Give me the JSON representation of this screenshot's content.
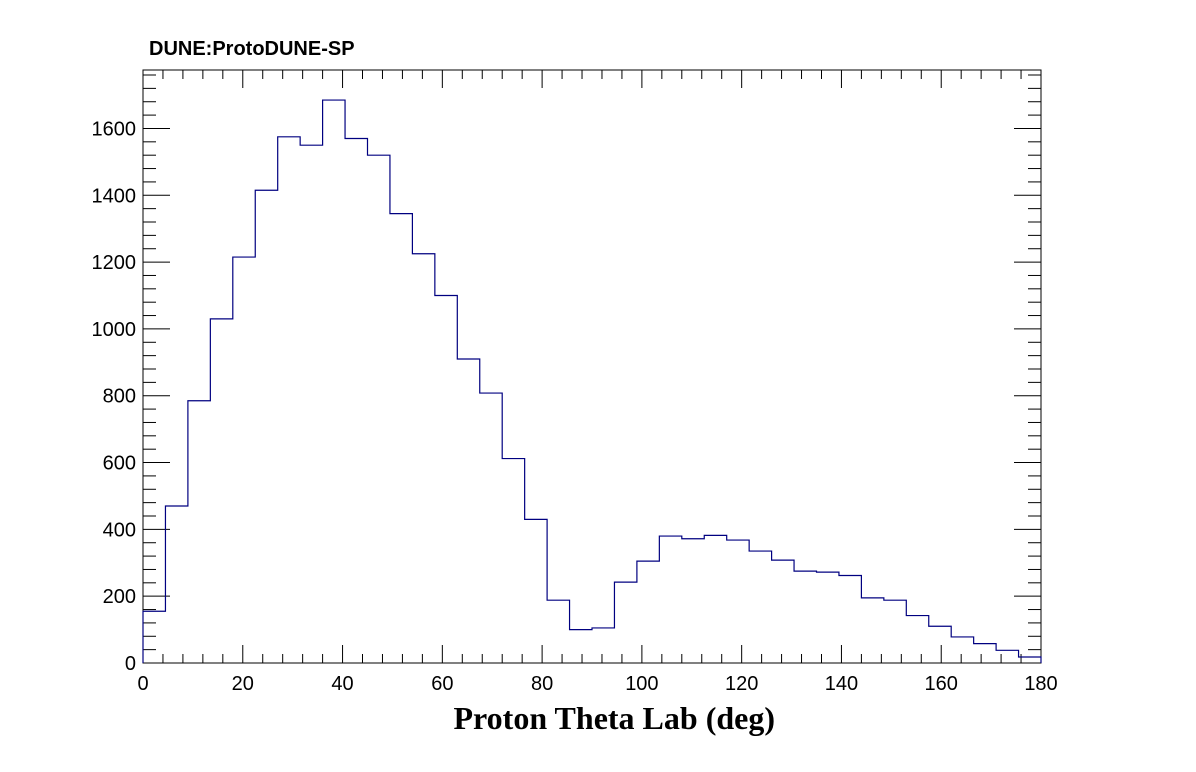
{
  "chart_data": {
    "type": "bar",
    "title": "DUNE:ProtoDUNE-SP",
    "xlabel": "Proton Theta Lab (deg)",
    "ylabel": "",
    "xlim": [
      0,
      180
    ],
    "ylim": [
      0,
      1775
    ],
    "x_ticks": [
      0,
      20,
      40,
      60,
      80,
      100,
      120,
      140,
      160,
      180
    ],
    "y_ticks": [
      0,
      200,
      400,
      600,
      800,
      1000,
      1200,
      1400,
      1600
    ],
    "bin_edges": [
      0,
      4.5,
      9,
      13.5,
      18,
      22.5,
      27,
      31.5,
      36,
      40.5,
      45,
      49.5,
      54,
      58.5,
      63,
      67.5,
      72,
      76.5,
      81,
      85.5,
      90,
      94.5,
      99,
      103.5,
      108,
      112.5,
      117,
      121.5,
      126,
      130.5,
      135,
      139.5,
      144,
      148.5,
      153,
      157.5,
      162,
      166.5,
      171,
      175.5,
      180
    ],
    "values": [
      155,
      470,
      785,
      1030,
      1215,
      1415,
      1575,
      1550,
      1685,
      1570,
      1520,
      1345,
      1225,
      1100,
      910,
      808,
      612,
      430,
      188,
      100,
      105,
      242,
      305,
      380,
      372,
      382,
      368,
      335,
      308,
      275,
      272,
      262,
      195,
      188,
      142,
      110,
      78,
      58,
      38,
      18
    ],
    "series_color": "#000080",
    "grid": false,
    "legend": false
  }
}
